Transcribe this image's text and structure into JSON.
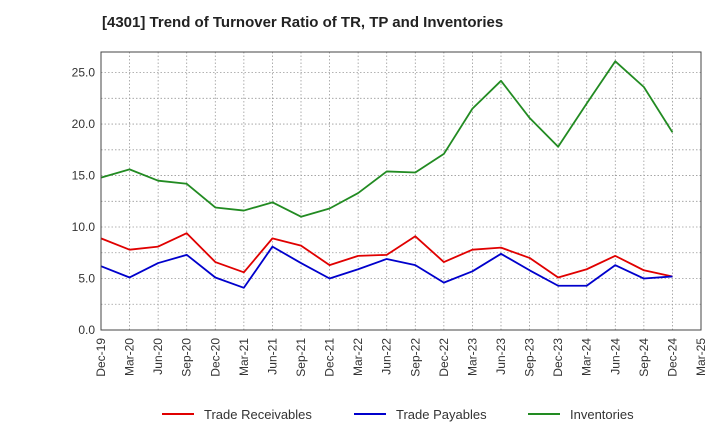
{
  "chart_data": {
    "type": "line",
    "title": "[4301]  Trend of Turnover Ratio of TR, TP and Inventories",
    "xlabel": "",
    "ylabel": "",
    "x": [
      "Dec-19",
      "Mar-20",
      "Jun-20",
      "Sep-20",
      "Dec-20",
      "Mar-21",
      "Jun-21",
      "Sep-21",
      "Dec-21",
      "Mar-22",
      "Jun-22",
      "Sep-22",
      "Dec-22",
      "Mar-23",
      "Jun-23",
      "Sep-23",
      "Dec-23",
      "Mar-24",
      "Jun-24",
      "Sep-24",
      "Dec-24",
      "Mar-25"
    ],
    "ylim": [
      0,
      27
    ],
    "yticks": [
      0.0,
      5.0,
      10.0,
      15.0,
      20.0,
      25.0
    ],
    "ytick_labels": [
      "0.0",
      "5.0",
      "10.0",
      "15.0",
      "20.0",
      "25.0"
    ],
    "grid": true,
    "legend_position": "bottom",
    "series": [
      {
        "name": "Trade Receivables",
        "color": "#e00000",
        "values": [
          8.9,
          7.8,
          8.1,
          9.4,
          6.6,
          5.6,
          8.9,
          8.2,
          6.3,
          7.2,
          7.3,
          9.1,
          6.6,
          7.8,
          8.0,
          7.0,
          5.1,
          5.9,
          7.2,
          5.8,
          5.2,
          null
        ]
      },
      {
        "name": "Trade Payables",
        "color": "#0000cc",
        "values": [
          6.2,
          5.1,
          6.5,
          7.3,
          5.1,
          4.1,
          8.1,
          6.5,
          5.0,
          5.9,
          6.9,
          6.3,
          4.6,
          5.7,
          7.4,
          5.8,
          4.3,
          4.3,
          6.3,
          5.0,
          5.2,
          null
        ]
      },
      {
        "name": "Inventories",
        "color": "#228b22",
        "values": [
          14.8,
          15.6,
          14.5,
          14.2,
          11.9,
          11.6,
          12.4,
          11.0,
          11.8,
          13.3,
          15.4,
          15.3,
          17.1,
          21.5,
          24.2,
          20.6,
          17.8,
          22.0,
          26.1,
          23.6,
          19.2,
          null
        ]
      }
    ]
  }
}
